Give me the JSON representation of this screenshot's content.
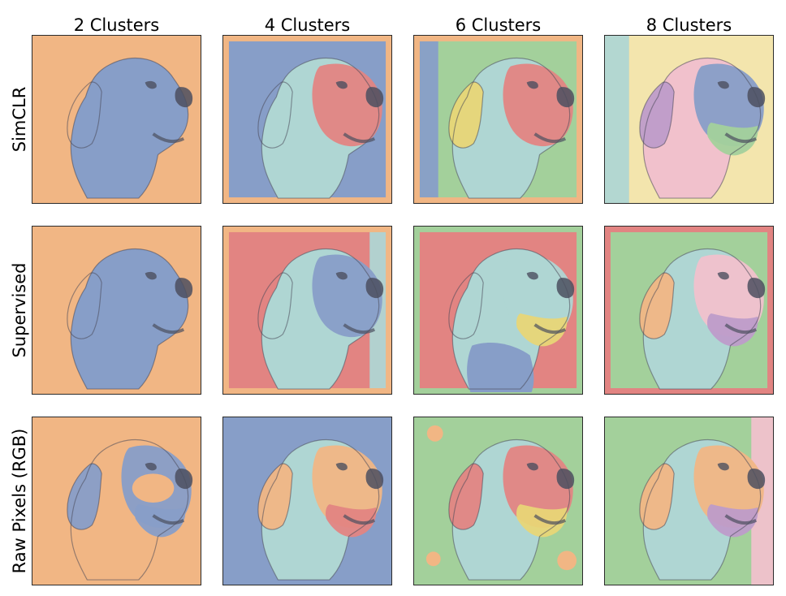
{
  "figure": {
    "columns": [
      "2 Clusters",
      "4 Clusters",
      "6 Clusters",
      "8 Clusters"
    ],
    "rows": [
      "SimCLR",
      "Supervised",
      "Raw Pixels (RGB)"
    ]
  },
  "palette": {
    "orange": "#f0b07a",
    "blue": "#7d96c4",
    "cyan": "#a9d3d0",
    "red": "#e07a78",
    "green": "#9ccc93",
    "yellow": "#e6d36b",
    "pink": "#f0bcc8",
    "purple": "#b893c6",
    "light_yellow": "#f2e3a6",
    "outline": "#2b2b2b"
  },
  "panels": [
    [
      {
        "bg": "orange",
        "regions": {
          "dog": "blue"
        }
      },
      {
        "bg": "blue",
        "regions": {
          "body": "cyan",
          "face": "red",
          "border": "orange"
        }
      },
      {
        "bg": "green",
        "regions": {
          "body": "cyan",
          "face": "red",
          "ear": "yellow",
          "border": "orange",
          "left": "blue"
        }
      },
      {
        "bg": "light_yellow",
        "regions": {
          "body": "pink",
          "face": "blue",
          "mouth": "green",
          "ear": "purple",
          "left": "cyan"
        }
      }
    ],
    [
      {
        "bg": "orange",
        "regions": {
          "dog": "blue"
        }
      },
      {
        "bg": "red",
        "regions": {
          "body": "cyan",
          "face": "blue",
          "border": "orange",
          "right": "cyan"
        }
      },
      {
        "bg": "red",
        "regions": {
          "body": "cyan",
          "face": "cyan",
          "mouth": "yellow",
          "chest": "blue",
          "border": "green"
        }
      },
      {
        "bg": "green",
        "regions": {
          "body": "cyan",
          "face": "pink",
          "ear": "orange",
          "mouth": "purple",
          "border": "red"
        }
      }
    ],
    [
      {
        "bg": "orange",
        "regions": {
          "ear": "blue",
          "face": "blue",
          "patch": "orange",
          "mouth": "blue"
        }
      },
      {
        "bg": "blue",
        "regions": {
          "body": "cyan",
          "ear": "orange",
          "face": "orange",
          "mouth": "red"
        }
      },
      {
        "bg": "green",
        "regions": {
          "body": "cyan",
          "ear": "red",
          "face": "red",
          "mouth": "yellow",
          "spots": "orange"
        }
      },
      {
        "bg": "green",
        "regions": {
          "body": "cyan",
          "ear": "orange",
          "face": "orange",
          "mouth": "purple",
          "right": "pink"
        }
      }
    ]
  ]
}
